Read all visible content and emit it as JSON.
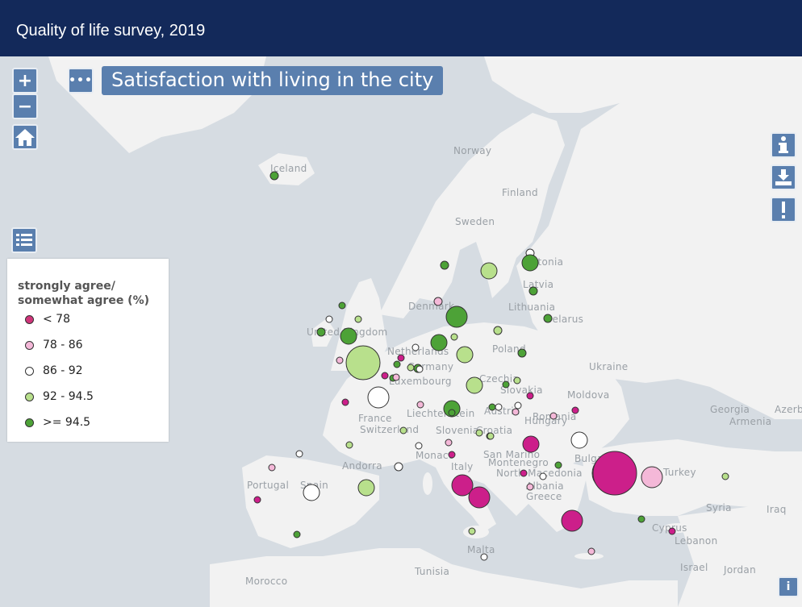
{
  "header": {
    "title": "Quality of life survey, 2019"
  },
  "map_title": "Satisfaction with living in the city",
  "controls": {
    "zoom_in": "+",
    "zoom_out": "−",
    "more": "•••",
    "info_bottom": "i"
  },
  "legend": {
    "title": "strongly agree/ somewhat agree (%)",
    "items": [
      {
        "label": "< 78",
        "color": "#d0357a"
      },
      {
        "label": "78 - 86",
        "color": "#f4b8d8"
      },
      {
        "label": "86 - 92",
        "color": "#ffffff"
      },
      {
        "label": "92 - 94.5",
        "color": "#b8e08c"
      },
      {
        "label": ">= 94.5",
        "color": "#4da237"
      }
    ]
  },
  "place_labels": [
    "Iceland",
    "Norway",
    "Finland",
    "Sweden",
    "Estonia",
    "Latvia",
    "Denmark",
    "Lithuania",
    "Belarus",
    "United Kingdom",
    "Netherlands",
    "Germany",
    "Luxembourg",
    "Poland",
    "Ukraine",
    "Czechia",
    "Slovakia",
    "Moldova",
    "France",
    "Liechtenstein",
    "Austria",
    "Hungary",
    "Romania",
    "Switzerland",
    "Slovenia",
    "Croatia",
    "Georgia",
    "Azerbaijan",
    "Armenia",
    "San Marino",
    "Monaco",
    "Montenegro",
    "Bulgaria",
    "Andorra",
    "Italy",
    "North Macedonia",
    "Turkey",
    "Portugal",
    "Spain",
    "Albania",
    "Greece",
    "Syria",
    "Iraq",
    "Cyprus",
    "Lebanon",
    "Malta",
    "Tunisia",
    "Israel",
    "Jordan",
    "Morocco"
  ],
  "colors": {
    "header": "#13295a",
    "control": "#5a7fae",
    "land": "#f2f2f2",
    "sea": "#d6dce2"
  },
  "cities": [
    {
      "cat": 4,
      "size": "s"
    },
    {
      "cat": 4,
      "size": "s"
    },
    {
      "cat": 3,
      "size": "m"
    },
    {
      "cat": 2,
      "size": "s"
    },
    {
      "cat": 4,
      "size": "m"
    },
    {
      "cat": 4,
      "size": "l"
    },
    {
      "cat": 1,
      "size": "s"
    },
    {
      "cat": 3,
      "size": "s"
    },
    {
      "cat": 4,
      "size": "m"
    },
    {
      "cat": 4,
      "size": "s"
    },
    {
      "cat": 4,
      "size": "s"
    },
    {
      "cat": 3,
      "size": "m"
    },
    {
      "cat": 4,
      "size": "s"
    },
    {
      "cat": 3,
      "size": "m"
    },
    {
      "cat": 4,
      "size": "s"
    },
    {
      "cat": 3,
      "size": "xl"
    },
    {
      "cat": 4,
      "size": "m"
    },
    {
      "cat": 4,
      "size": "s"
    },
    {
      "cat": 2,
      "size": "l"
    },
    {
      "cat": 4,
      "size": "m"
    },
    {
      "cat": 2,
      "size": "xl"
    },
    {
      "cat": 2,
      "size": "s"
    },
    {
      "cat": 2,
      "size": "m"
    },
    {
      "cat": 3,
      "size": "m"
    },
    {
      "cat": 0,
      "size": "l"
    },
    {
      "cat": 0,
      "size": "l"
    },
    {
      "cat": 0,
      "size": "l"
    },
    {
      "cat": 0,
      "size": "xxl"
    },
    {
      "cat": 1,
      "size": "l"
    },
    {
      "cat": 0,
      "size": "m"
    },
    {
      "cat": 2,
      "size": "m"
    }
  ]
}
